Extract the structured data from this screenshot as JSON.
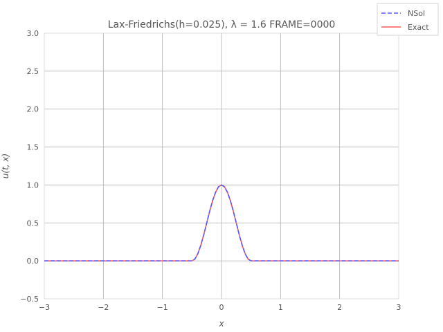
{
  "chart_data": {
    "type": "line",
    "title": "Lax-Friedrichs(h=0.025), λ = 1.6 FRAME=0000",
    "xlabel": "x",
    "ylabel": "u(t, x)",
    "xlim": [
      -3,
      3
    ],
    "ylim": [
      -0.5,
      3.0
    ],
    "xticks": [
      "−3",
      "−2",
      "−1",
      "0",
      "1",
      "2",
      "3"
    ],
    "xtick_values": [
      -3,
      -2,
      -1,
      0,
      1,
      2,
      3
    ],
    "yticks": [
      "−0.5",
      "0.0",
      "0.5",
      "1.0",
      "1.5",
      "2.0",
      "2.5",
      "3.0"
    ],
    "ytick_values": [
      -0.5,
      0.0,
      0.5,
      1.0,
      1.5,
      2.0,
      2.5,
      3.0
    ],
    "grid": true,
    "legend_position": "top-right",
    "x": [
      -3.0,
      -1.0,
      -0.5,
      -0.45,
      -0.4,
      -0.35,
      -0.3,
      -0.25,
      -0.2,
      -0.15,
      -0.1,
      -0.05,
      0.0,
      0.05,
      0.1,
      0.15,
      0.2,
      0.25,
      0.3,
      0.35,
      0.4,
      0.45,
      0.5,
      1.0,
      3.0
    ],
    "series": [
      {
        "name": "NSol",
        "color": "#5555ff",
        "style": "dashed",
        "values": [
          0.0,
          0.0,
          0.0,
          0.024,
          0.095,
          0.206,
          0.345,
          0.5,
          0.655,
          0.794,
          0.905,
          0.976,
          1.0,
          0.976,
          0.905,
          0.794,
          0.655,
          0.5,
          0.345,
          0.206,
          0.095,
          0.024,
          0.0,
          0.0,
          0.0
        ]
      },
      {
        "name": "Exact",
        "color": "#ff5555",
        "style": "solid",
        "values": [
          0.0,
          0.0,
          0.0,
          0.024,
          0.095,
          0.206,
          0.345,
          0.5,
          0.655,
          0.794,
          0.905,
          0.976,
          1.0,
          0.976,
          0.905,
          0.794,
          0.655,
          0.5,
          0.345,
          0.206,
          0.095,
          0.024,
          0.0,
          0.0,
          0.0
        ]
      }
    ]
  }
}
